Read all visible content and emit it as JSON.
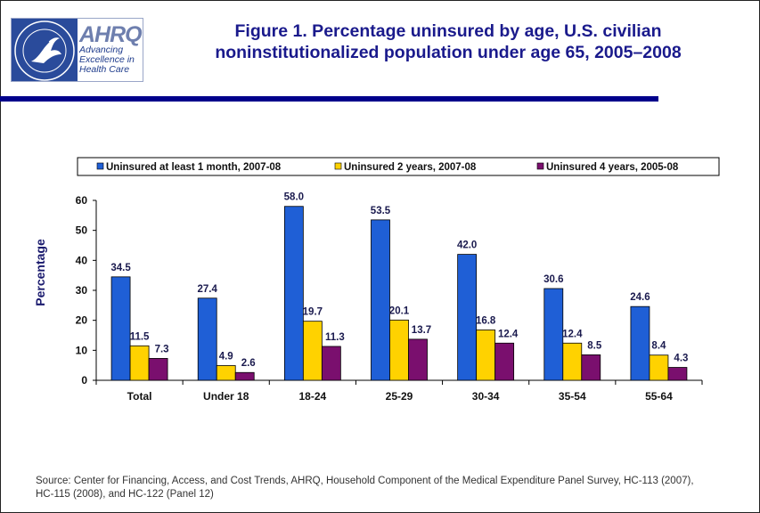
{
  "header": {
    "title_line1": "Figure 1. Percentage uninsured by age, U.S. civilian",
    "title_line2": "noninstitutionalized population under age 65, 2005–2008",
    "logo": {
      "name": "AHRQ",
      "tagline_lines": [
        "Advancing",
        "Excellence in",
        "Health Care"
      ],
      "seal_text": "DEPARTMENT OF HEALTH & HUMAN SERVICES"
    }
  },
  "chart_data": {
    "type": "bar",
    "title": "",
    "xlabel": "",
    "ylabel": "Percentage",
    "ylim": [
      0,
      60
    ],
    "yticks": [
      0,
      10,
      20,
      30,
      40,
      50,
      60
    ],
    "categories": [
      "Total",
      "Under 18",
      "18-24",
      "25-29",
      "30-34",
      "35-54",
      "55-64"
    ],
    "series": [
      {
        "name": "Uninsured at least 1 month, 2007-08",
        "color": "#1f5fd6",
        "values": [
          34.5,
          27.4,
          58.0,
          53.5,
          42.0,
          30.6,
          24.6
        ],
        "labels": [
          "34.5",
          "27.4",
          "58.0",
          "53.5",
          "42.0",
          "30.6",
          "24.6"
        ]
      },
      {
        "name": "Uninsured 2 years, 2007-08",
        "color": "#ffd200",
        "values": [
          11.5,
          4.9,
          19.7,
          20.1,
          16.8,
          12.4,
          8.4
        ],
        "labels": [
          "11.5",
          "4.9",
          "19.7",
          "20.1",
          "16.8",
          "12.4",
          "8.4"
        ]
      },
      {
        "name": "Uninsured 4 years, 2005-08",
        "color": "#7a0f6e",
        "values": [
          7.3,
          2.6,
          11.3,
          13.7,
          12.4,
          8.5,
          4.3
        ],
        "labels": [
          "7.3",
          "2.6",
          "11.3",
          "13.7",
          "12.4",
          "8.5",
          "4.3"
        ]
      }
    ],
    "legend_position": "top"
  },
  "footer": {
    "source_line1": "Source: Center for Financing, Access, and Cost Trends, AHRQ, Household Component of the Medical Expenditure Panel Survey, HC-113 (2007),",
    "source_line2": "HC-115 (2008), and HC-122 (Panel 12)"
  }
}
